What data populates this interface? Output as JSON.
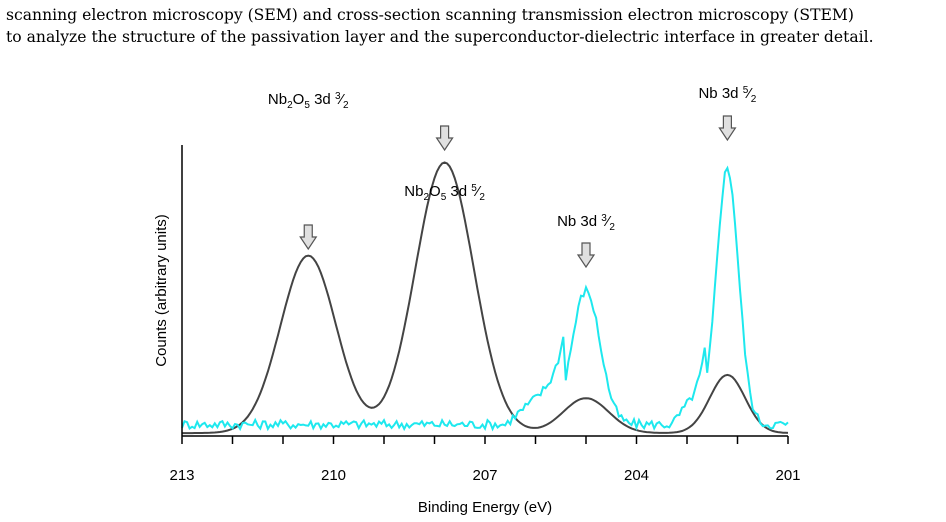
{
  "paragraph": {
    "line1": "scanning electron microscopy (SEM) and cross-section scanning transmission electron microscopy (STEM)",
    "line2": "to analyze the structure of the passivation layer and the superconductor-dielectric interface in greater detail."
  },
  "chart_data": {
    "type": "line",
    "xlabel": "Binding Energy (eV)",
    "ylabel": "Counts (arbitrary units)",
    "xlim": [
      213,
      201
    ],
    "ylim": [
      0,
      100
    ],
    "x_ticks": [
      "213",
      "210",
      "207",
      "204",
      "201"
    ],
    "colors": {
      "dark": "#444444",
      "cyan": "#1ee8ee",
      "arrow_fill": "#e0e0e0",
      "arrow_stroke": "#555555"
    },
    "annotations": [
      {
        "base": "Nb",
        "sub1": "2",
        "mid": "O",
        "sub2": "5",
        "suffix": " 3d ",
        "frac_num": "3",
        "frac_den": "2",
        "x": 210.5
      },
      {
        "base": "Nb",
        "sub1": "2",
        "mid": "O",
        "sub2": "5",
        "suffix": " 3d ",
        "frac_num": "5",
        "frac_den": "2",
        "x": 207.8
      },
      {
        "base": "Nb",
        "sub1": "",
        "mid": "",
        "sub2": "",
        "suffix": " 3d ",
        "frac_num": "3",
        "frac_den": "2",
        "x": 205.0
      },
      {
        "base": "Nb",
        "sub1": "",
        "mid": "",
        "sub2": "",
        "suffix": " 3d ",
        "frac_num": "5",
        "frac_den": "2",
        "x": 202.2
      }
    ],
    "series": [
      {
        "color_key": "dark",
        "peaks": [
          {
            "center": 210.5,
            "height": 61,
            "width": 0.55
          },
          {
            "center": 207.8,
            "height": 93,
            "width": 0.58
          },
          {
            "center": 205.0,
            "height": 12,
            "width": 0.45
          },
          {
            "center": 202.2,
            "height": 20,
            "width": 0.35
          }
        ],
        "baseline": 1.0
      },
      {
        "color_key": "cyan",
        "peaks": [
          {
            "center": 205.0,
            "height": 46,
            "width": 0.28
          },
          {
            "center": 202.2,
            "height": 88,
            "width": 0.22
          }
        ],
        "baseline": 4.0,
        "ramp": [
          {
            "from": 206.6,
            "to": 205.4,
            "level": 18
          },
          {
            "from": 203.3,
            "to": 202.6,
            "level": 16
          }
        ],
        "noise": 1.6
      }
    ]
  }
}
